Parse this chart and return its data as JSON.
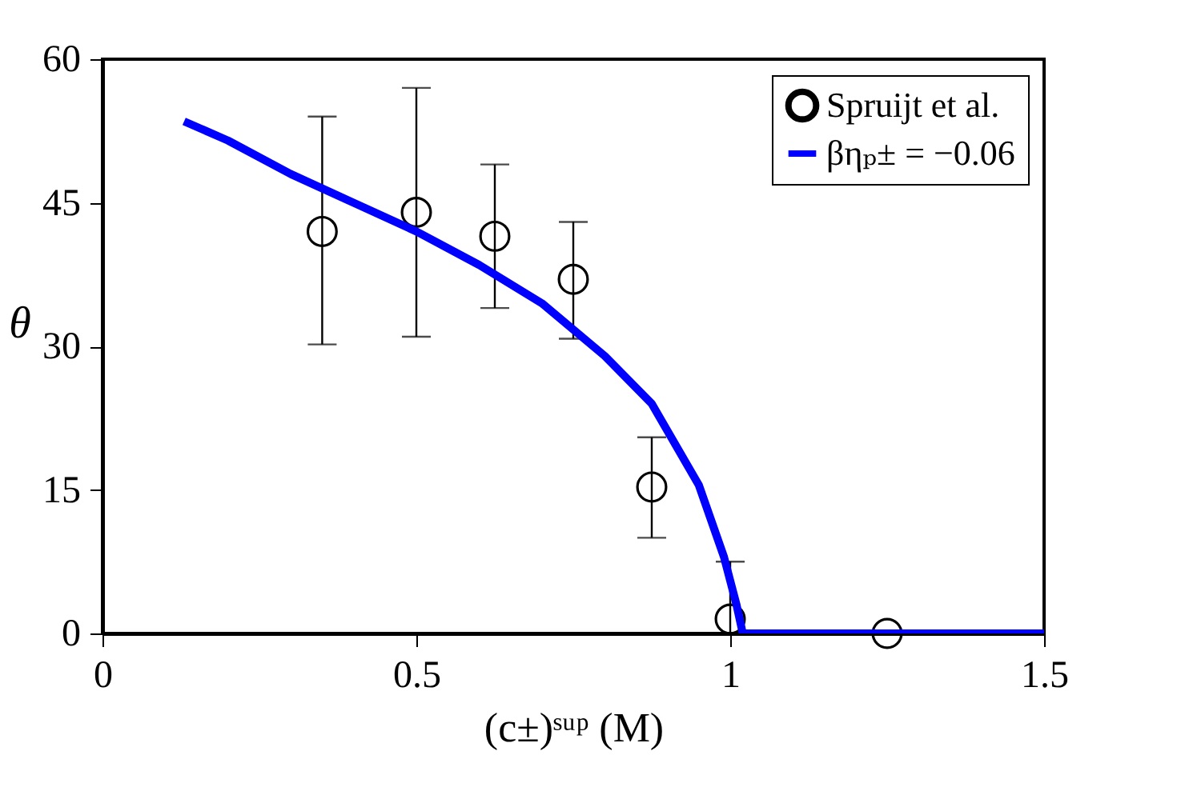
{
  "chart_data": {
    "type": "scatter",
    "xlabel": "(c±)ˢᵘᵖ (M)",
    "ylabel": "θ",
    "xlim": [
      0,
      1.5
    ],
    "xticks": [
      {
        "value": 0,
        "label": "0"
      },
      0.5,
      {
        "value": 1,
        "label": "1"
      },
      1.5
    ],
    "ylim": [
      0,
      60
    ],
    "yticks": [
      0,
      15,
      30,
      45,
      60
    ],
    "grid": false,
    "legend": "top right",
    "series": [
      {
        "name": "Spruijt et al.",
        "marker": "circle",
        "color": "#000000",
        "x": [
          0.35,
          0.5,
          0.625,
          0.75,
          0.875,
          1.0,
          1.25
        ],
        "values": [
          42,
          44,
          41.5,
          37,
          15.3,
          1.5,
          0
        ],
        "errors": [
          [
            30.2,
            54
          ],
          [
            31,
            57
          ],
          [
            34,
            49
          ],
          [
            30.8,
            43
          ],
          [
            10,
            20.5
          ],
          [
            0,
            7.5
          ],
          null
        ]
      },
      {
        "name": "βηₚ± = −0.06",
        "type": "line",
        "line_style": "solid",
        "color": "#0000ff",
        "x": [
          0.13,
          0.2,
          0.3,
          0.4,
          0.5,
          0.6,
          0.7,
          0.8,
          0.875,
          0.95,
          0.99,
          1.01,
          1.02,
          1.5
        ],
        "values": [
          53.5,
          51.5,
          48,
          45,
          42,
          38.5,
          34.5,
          29,
          24,
          15.5,
          8,
          3,
          0,
          0
        ]
      }
    ]
  }
}
